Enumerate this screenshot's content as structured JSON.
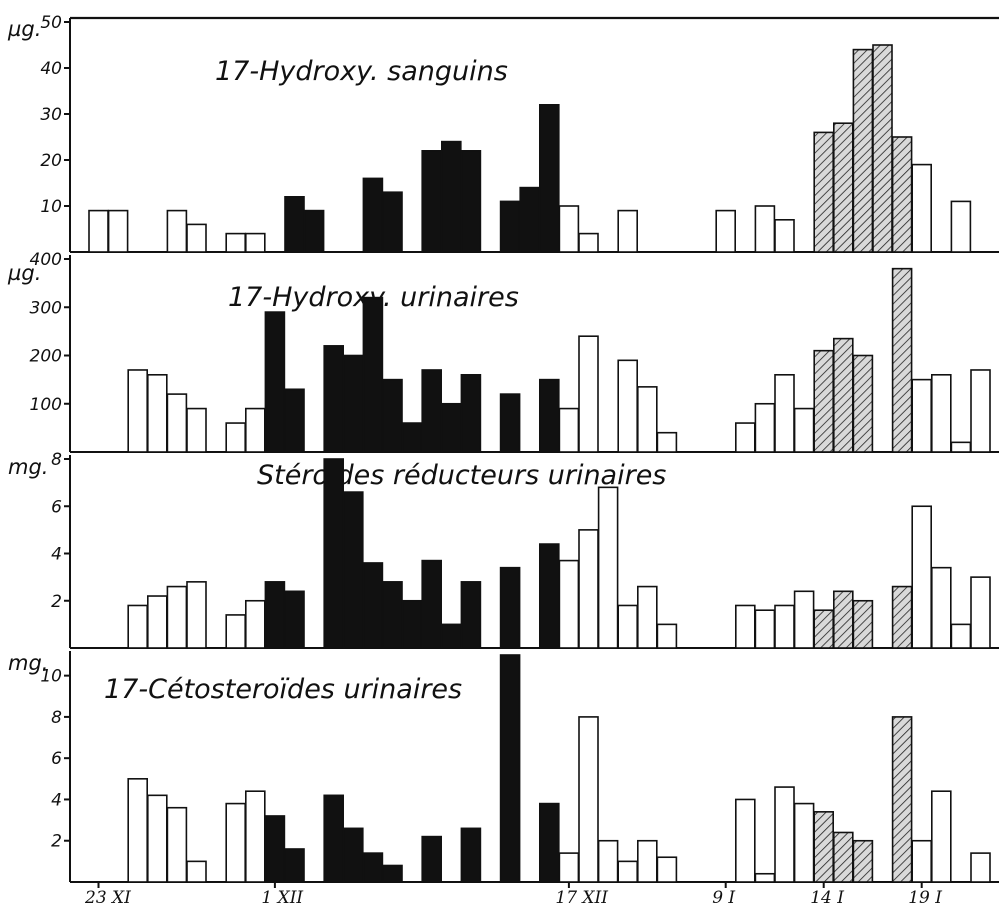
{
  "chart_data": [
    {
      "type": "bar",
      "title": "17-Hydroxy. sanguins",
      "unit": "µg.",
      "ylim": [
        0,
        50
      ],
      "yticks": [
        "10",
        "20",
        "30",
        "40",
        "50"
      ],
      "fill_legend": {
        "white": "open",
        "black": "solid",
        "hatched": "hatched"
      },
      "bars": [
        {
          "day": 1,
          "value": 9,
          "fill": "white"
        },
        {
          "day": 2,
          "value": 9,
          "fill": "white"
        },
        {
          "day": 5,
          "value": 9,
          "fill": "white"
        },
        {
          "day": 6,
          "value": 6,
          "fill": "white"
        },
        {
          "day": 8,
          "value": 4,
          "fill": "white"
        },
        {
          "day": 9,
          "value": 4,
          "fill": "white"
        },
        {
          "day": 11,
          "value": 12,
          "fill": "black"
        },
        {
          "day": 12,
          "value": 9,
          "fill": "black"
        },
        {
          "day": 15,
          "value": 16,
          "fill": "black"
        },
        {
          "day": 16,
          "value": 13,
          "fill": "black"
        },
        {
          "day": 18,
          "value": 22,
          "fill": "black"
        },
        {
          "day": 19,
          "value": 24,
          "fill": "black"
        },
        {
          "day": 20,
          "value": 22,
          "fill": "black"
        },
        {
          "day": 22,
          "value": 11,
          "fill": "black"
        },
        {
          "day": 23,
          "value": 14,
          "fill": "black"
        },
        {
          "day": 24,
          "value": 32,
          "fill": "black"
        },
        {
          "day": 25,
          "value": 10,
          "fill": "white"
        },
        {
          "day": 26,
          "value": 4,
          "fill": "white"
        },
        {
          "day": 28,
          "value": 9,
          "fill": "white"
        },
        {
          "day": 33,
          "value": 9,
          "fill": "white"
        },
        {
          "day": 35,
          "value": 10,
          "fill": "white"
        },
        {
          "day": 36,
          "value": 7,
          "fill": "white"
        },
        {
          "day": 38,
          "value": 26,
          "fill": "hatched"
        },
        {
          "day": 39,
          "value": 28,
          "fill": "hatched"
        },
        {
          "day": 40,
          "value": 44,
          "fill": "hatched"
        },
        {
          "day": 41,
          "value": 45,
          "fill": "hatched"
        },
        {
          "day": 42,
          "value": 25,
          "fill": "hatched"
        },
        {
          "day": 43,
          "value": 19,
          "fill": "white"
        },
        {
          "day": 45,
          "value": 11,
          "fill": "white"
        }
      ]
    },
    {
      "type": "bar",
      "title": "17-Hydroxy. urinaires",
      "unit": "µg.",
      "ylim": [
        0,
        400
      ],
      "yticks": [
        "100",
        "200",
        "300",
        "400"
      ],
      "bars": [
        {
          "day": 3,
          "value": 170,
          "fill": "white"
        },
        {
          "day": 4,
          "value": 160,
          "fill": "white"
        },
        {
          "day": 5,
          "value": 120,
          "fill": "white"
        },
        {
          "day": 6,
          "value": 90,
          "fill": "white"
        },
        {
          "day": 8,
          "value": 60,
          "fill": "white"
        },
        {
          "day": 9,
          "value": 90,
          "fill": "white"
        },
        {
          "day": 10,
          "value": 290,
          "fill": "black"
        },
        {
          "day": 11,
          "value": 130,
          "fill": "black"
        },
        {
          "day": 13,
          "value": 220,
          "fill": "black"
        },
        {
          "day": 14,
          "value": 200,
          "fill": "black"
        },
        {
          "day": 15,
          "value": 320,
          "fill": "black"
        },
        {
          "day": 16,
          "value": 150,
          "fill": "black"
        },
        {
          "day": 17,
          "value": 60,
          "fill": "black"
        },
        {
          "day": 18,
          "value": 170,
          "fill": "black"
        },
        {
          "day": 19,
          "value": 100,
          "fill": "black"
        },
        {
          "day": 20,
          "value": 160,
          "fill": "black"
        },
        {
          "day": 22,
          "value": 120,
          "fill": "black"
        },
        {
          "day": 24,
          "value": 150,
          "fill": "black"
        },
        {
          "day": 25,
          "value": 90,
          "fill": "white"
        },
        {
          "day": 26,
          "value": 240,
          "fill": "white"
        },
        {
          "day": 28,
          "value": 190,
          "fill": "white"
        },
        {
          "day": 29,
          "value": 135,
          "fill": "white"
        },
        {
          "day": 30,
          "value": 40,
          "fill": "white"
        },
        {
          "day": 34,
          "value": 60,
          "fill": "white"
        },
        {
          "day": 35,
          "value": 100,
          "fill": "white"
        },
        {
          "day": 36,
          "value": 160,
          "fill": "white"
        },
        {
          "day": 37,
          "value": 90,
          "fill": "white"
        },
        {
          "day": 38,
          "value": 210,
          "fill": "hatched"
        },
        {
          "day": 39,
          "value": 235,
          "fill": "hatched"
        },
        {
          "day": 40,
          "value": 200,
          "fill": "hatched"
        },
        {
          "day": 42,
          "value": 380,
          "fill": "hatched"
        },
        {
          "day": 43,
          "value": 150,
          "fill": "white"
        },
        {
          "day": 44,
          "value": 160,
          "fill": "white"
        },
        {
          "day": 45,
          "value": 20,
          "fill": "white"
        },
        {
          "day": 46,
          "value": 170,
          "fill": "white"
        }
      ]
    },
    {
      "type": "bar",
      "title": "Stéroïdes réducteurs urinaires",
      "unit": "mg.",
      "ylim": [
        0,
        8
      ],
      "yticks": [
        "2",
        "4",
        "6",
        "8"
      ],
      "bars": [
        {
          "day": 3,
          "value": 1.8,
          "fill": "white"
        },
        {
          "day": 4,
          "value": 2.2,
          "fill": "white"
        },
        {
          "day": 5,
          "value": 2.6,
          "fill": "white"
        },
        {
          "day": 6,
          "value": 2.8,
          "fill": "white"
        },
        {
          "day": 8,
          "value": 1.4,
          "fill": "white"
        },
        {
          "day": 9,
          "value": 2.0,
          "fill": "white"
        },
        {
          "day": 10,
          "value": 2.8,
          "fill": "black"
        },
        {
          "day": 11,
          "value": 2.4,
          "fill": "black"
        },
        {
          "day": 13,
          "value": 8.0,
          "fill": "black"
        },
        {
          "day": 14,
          "value": 6.6,
          "fill": "black"
        },
        {
          "day": 15,
          "value": 3.6,
          "fill": "black"
        },
        {
          "day": 16,
          "value": 2.8,
          "fill": "black"
        },
        {
          "day": 17,
          "value": 2.0,
          "fill": "black"
        },
        {
          "day": 18,
          "value": 3.7,
          "fill": "black"
        },
        {
          "day": 19,
          "value": 1.0,
          "fill": "black"
        },
        {
          "day": 20,
          "value": 2.8,
          "fill": "black"
        },
        {
          "day": 22,
          "value": 3.4,
          "fill": "black"
        },
        {
          "day": 24,
          "value": 4.4,
          "fill": "black"
        },
        {
          "day": 25,
          "value": 3.7,
          "fill": "white"
        },
        {
          "day": 26,
          "value": 5.0,
          "fill": "white"
        },
        {
          "day": 27,
          "value": 6.8,
          "fill": "white"
        },
        {
          "day": 28,
          "value": 1.8,
          "fill": "white"
        },
        {
          "day": 29,
          "value": 2.6,
          "fill": "white"
        },
        {
          "day": 30,
          "value": 1.0,
          "fill": "white"
        },
        {
          "day": 34,
          "value": 1.8,
          "fill": "white"
        },
        {
          "day": 35,
          "value": 1.6,
          "fill": "white"
        },
        {
          "day": 36,
          "value": 1.8,
          "fill": "white"
        },
        {
          "day": 37,
          "value": 2.4,
          "fill": "white"
        },
        {
          "day": 38,
          "value": 1.6,
          "fill": "hatched"
        },
        {
          "day": 39,
          "value": 2.4,
          "fill": "hatched"
        },
        {
          "day": 40,
          "value": 2.0,
          "fill": "hatched"
        },
        {
          "day": 42,
          "value": 2.6,
          "fill": "hatched"
        },
        {
          "day": 43,
          "value": 6.0,
          "fill": "white"
        },
        {
          "day": 44,
          "value": 3.4,
          "fill": "white"
        },
        {
          "day": 45,
          "value": 1.0,
          "fill": "white"
        },
        {
          "day": 46,
          "value": 3.0,
          "fill": "white"
        }
      ]
    },
    {
      "type": "bar",
      "title": "17-Cétosteroïdes urinaires",
      "unit": "mg.",
      "ylim": [
        0,
        11
      ],
      "yticks": [
        "2",
        "4",
        "6",
        "8",
        "10"
      ],
      "bars": [
        {
          "day": 3,
          "value": 5.0,
          "fill": "white"
        },
        {
          "day": 4,
          "value": 4.2,
          "fill": "white"
        },
        {
          "day": 5,
          "value": 3.6,
          "fill": "white"
        },
        {
          "day": 6,
          "value": 1.0,
          "fill": "white"
        },
        {
          "day": 8,
          "value": 3.8,
          "fill": "white"
        },
        {
          "day": 9,
          "value": 4.4,
          "fill": "white"
        },
        {
          "day": 10,
          "value": 3.2,
          "fill": "black"
        },
        {
          "day": 11,
          "value": 1.6,
          "fill": "black"
        },
        {
          "day": 13,
          "value": 4.2,
          "fill": "black"
        },
        {
          "day": 14,
          "value": 2.6,
          "fill": "black"
        },
        {
          "day": 15,
          "value": 1.4,
          "fill": "black"
        },
        {
          "day": 16,
          "value": 0.8,
          "fill": "black"
        },
        {
          "day": 18,
          "value": 2.2,
          "fill": "black"
        },
        {
          "day": 20,
          "value": 2.6,
          "fill": "black"
        },
        {
          "day": 22,
          "value": 11.0,
          "fill": "black"
        },
        {
          "day": 24,
          "value": 3.8,
          "fill": "black"
        },
        {
          "day": 25,
          "value": 1.4,
          "fill": "white"
        },
        {
          "day": 26,
          "value": 8.0,
          "fill": "white"
        },
        {
          "day": 27,
          "value": 2.0,
          "fill": "white"
        },
        {
          "day": 28,
          "value": 1.0,
          "fill": "white"
        },
        {
          "day": 29,
          "value": 2.0,
          "fill": "white"
        },
        {
          "day": 30,
          "value": 1.2,
          "fill": "white"
        },
        {
          "day": 34,
          "value": 4.0,
          "fill": "white"
        },
        {
          "day": 35,
          "value": 0.4,
          "fill": "white"
        },
        {
          "day": 36,
          "value": 4.6,
          "fill": "white"
        },
        {
          "day": 37,
          "value": 3.8,
          "fill": "white"
        },
        {
          "day": 38,
          "value": 3.4,
          "fill": "hatched"
        },
        {
          "day": 39,
          "value": 2.4,
          "fill": "hatched"
        },
        {
          "day": 40,
          "value": 2.0,
          "fill": "hatched"
        },
        {
          "day": 42,
          "value": 8.0,
          "fill": "hatched"
        },
        {
          "day": 43,
          "value": 2.0,
          "fill": "white"
        },
        {
          "day": 44,
          "value": 4.4,
          "fill": "white"
        },
        {
          "day": 46,
          "value": 1.4,
          "fill": "white"
        }
      ]
    }
  ],
  "x_axis": {
    "date_labels": [
      {
        "day": 1,
        "text": "23 XI"
      },
      {
        "day": 10,
        "text": "1 XII"
      },
      {
        "day": 25,
        "text": "17 XII"
      },
      {
        "day": 33,
        "text": "9 I"
      },
      {
        "day": 38,
        "text": "14 I"
      },
      {
        "day": 43,
        "text": "19 I"
      }
    ]
  }
}
